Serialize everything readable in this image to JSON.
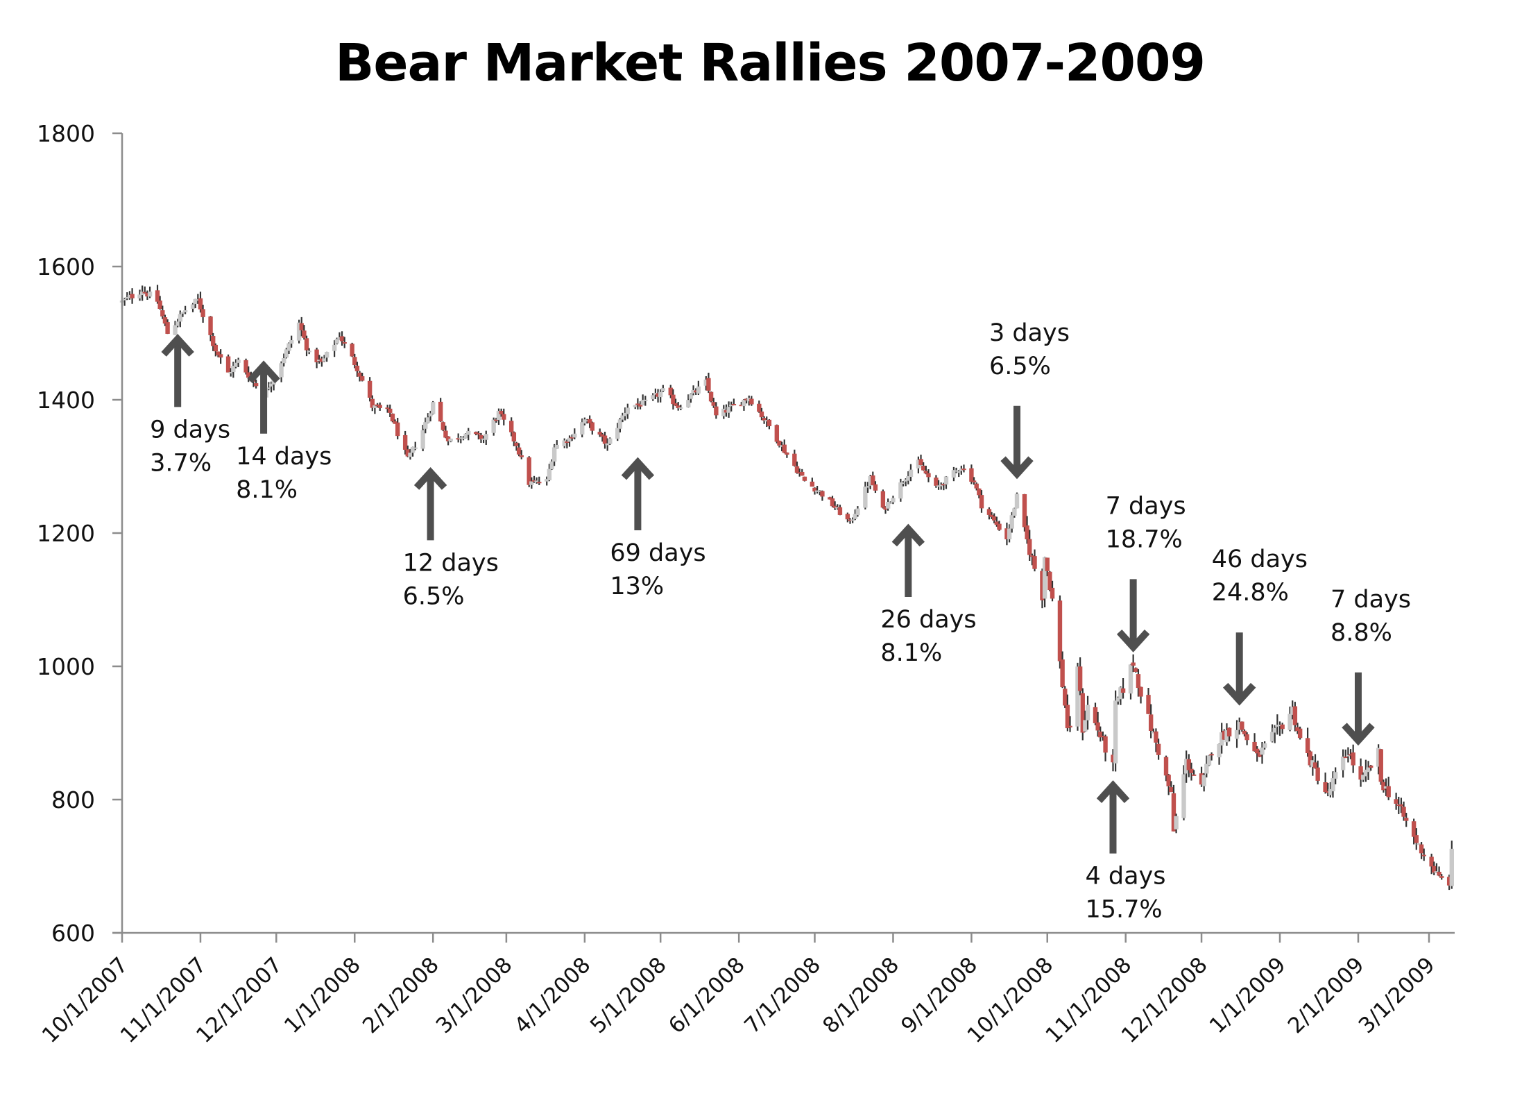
{
  "colors": {
    "down_body": "#c0504d",
    "up_body": "#c9c9c9",
    "wick": "#333333",
    "arrow": "#4f4f4f",
    "axis": "#8c8c8c"
  },
  "chart_data": {
    "type": "candlestick",
    "title": "Bear Market Rallies 2007-2009",
    "xlabel": "",
    "ylabel": "",
    "ylim": [
      600,
      1800
    ],
    "xlim": [
      "2007-10-01",
      "2009-03-11"
    ],
    "grid": false,
    "legend": "none",
    "y_ticks": [
      "1800",
      "1600",
      "1400",
      "1200",
      "1000",
      "800",
      "600"
    ],
    "x_ticks": [
      {
        "date": "2007-10-01",
        "label": "10/1/2007"
      },
      {
        "date": "2007-11-01",
        "label": "11/1/2007"
      },
      {
        "date": "2007-12-01",
        "label": "12/1/2007"
      },
      {
        "date": "2008-01-01",
        "label": "1/1/2008"
      },
      {
        "date": "2008-02-01",
        "label": "2/1/2008"
      },
      {
        "date": "2008-03-01",
        "label": "3/1/2008"
      },
      {
        "date": "2008-04-01",
        "label": "4/1/2008"
      },
      {
        "date": "2008-05-01",
        "label": "5/1/2008"
      },
      {
        "date": "2008-06-01",
        "label": "6/1/2008"
      },
      {
        "date": "2008-07-01",
        "label": "7/1/2008"
      },
      {
        "date": "2008-08-01",
        "label": "8/1/2008"
      },
      {
        "date": "2008-09-01",
        "label": "9/1/2008"
      },
      {
        "date": "2008-10-01",
        "label": "10/1/2008"
      },
      {
        "date": "2008-11-01",
        "label": "11/1/2008"
      },
      {
        "date": "2008-12-01",
        "label": "12/1/2008"
      },
      {
        "date": "2009-01-01",
        "label": "1/1/2009"
      },
      {
        "date": "2009-02-01",
        "label": "2/1/2009"
      },
      {
        "date": "2009-03-01",
        "label": "3/1/2009"
      }
    ],
    "close_anchors": [
      [
        "2007-10-01",
        1547
      ],
      [
        "2007-10-09",
        1565
      ],
      [
        "2007-10-15",
        1548
      ],
      [
        "2007-10-19",
        1500
      ],
      [
        "2007-10-26",
        1535
      ],
      [
        "2007-10-31",
        1549
      ],
      [
        "2007-11-07",
        1475
      ],
      [
        "2007-11-12",
        1440
      ],
      [
        "2007-11-16",
        1458
      ],
      [
        "2007-11-26",
        1407
      ],
      [
        "2007-12-04",
        1465
      ],
      [
        "2007-12-10",
        1515
      ],
      [
        "2007-12-14",
        1468
      ],
      [
        "2007-12-19",
        1455
      ],
      [
        "2007-12-26",
        1497
      ],
      [
        "2008-01-02",
        1448
      ],
      [
        "2008-01-08",
        1390
      ],
      [
        "2008-01-15",
        1380
      ],
      [
        "2008-01-22",
        1310
      ],
      [
        "2008-01-28",
        1355
      ],
      [
        "2008-02-01",
        1395
      ],
      [
        "2008-02-07",
        1338
      ],
      [
        "2008-02-14",
        1350
      ],
      [
        "2008-02-21",
        1342
      ],
      [
        "2008-02-27",
        1380
      ],
      [
        "2008-03-05",
        1333
      ],
      [
        "2008-03-10",
        1275
      ],
      [
        "2008-03-17",
        1278
      ],
      [
        "2008-03-20",
        1330
      ],
      [
        "2008-03-26",
        1342
      ],
      [
        "2008-04-01",
        1370
      ],
      [
        "2008-04-10",
        1332
      ],
      [
        "2008-04-18",
        1390
      ],
      [
        "2008-04-25",
        1395
      ],
      [
        "2008-05-02",
        1413
      ],
      [
        "2008-05-08",
        1390
      ],
      [
        "2008-05-19",
        1426
      ],
      [
        "2008-05-23",
        1375
      ],
      [
        "2008-06-05",
        1404
      ],
      [
        "2008-06-13",
        1360
      ],
      [
        "2008-06-20",
        1318
      ],
      [
        "2008-06-27",
        1278
      ],
      [
        "2008-07-03",
        1262
      ],
      [
        "2008-07-15",
        1215
      ],
      [
        "2008-07-23",
        1282
      ],
      [
        "2008-07-28",
        1234
      ],
      [
        "2008-08-08",
        1296
      ],
      [
        "2008-08-11",
        1305
      ],
      [
        "2008-08-18",
        1267
      ],
      [
        "2008-08-28",
        1300
      ],
      [
        "2008-09-02",
        1277
      ],
      [
        "2008-09-05",
        1242
      ],
      [
        "2008-09-15",
        1193
      ],
      [
        "2008-09-19",
        1255
      ],
      [
        "2008-09-23",
        1188
      ],
      [
        "2008-09-29",
        1106
      ],
      [
        "2008-09-30",
        1166
      ],
      [
        "2008-10-03",
        1100
      ],
      [
        "2008-10-09",
        910
      ],
      [
        "2008-10-10",
        899
      ],
      [
        "2008-10-13",
        1003
      ],
      [
        "2008-10-15",
        907
      ],
      [
        "2008-10-17",
        940
      ],
      [
        "2008-10-22",
        896
      ],
      [
        "2008-10-27",
        848
      ],
      [
        "2008-10-28",
        940
      ],
      [
        "2008-10-31",
        968
      ],
      [
        "2008-11-04",
        1005
      ],
      [
        "2008-11-10",
        920
      ],
      [
        "2008-11-14",
        873
      ],
      [
        "2008-11-19",
        806
      ],
      [
        "2008-11-20",
        752
      ],
      [
        "2008-11-25",
        857
      ],
      [
        "2008-12-01",
        816
      ],
      [
        "2008-12-05",
        876
      ],
      [
        "2008-12-10",
        899
      ],
      [
        "2008-12-16",
        913
      ],
      [
        "2008-12-23",
        863
      ],
      [
        "2008-12-31",
        903
      ],
      [
        "2009-01-06",
        935
      ],
      [
        "2009-01-09",
        890
      ],
      [
        "2009-01-15",
        843
      ],
      [
        "2009-01-20",
        805
      ],
      [
        "2009-01-22",
        827
      ],
      [
        "2009-01-28",
        874
      ],
      [
        "2009-02-02",
        825
      ],
      [
        "2009-02-09",
        869
      ],
      [
        "2009-02-10",
        827
      ],
      [
        "2009-02-17",
        789
      ],
      [
        "2009-02-23",
        743
      ],
      [
        "2009-03-02",
        700
      ],
      [
        "2009-03-05",
        682
      ],
      [
        "2009-03-09",
        676
      ],
      [
        "2009-03-10",
        719
      ]
    ],
    "annotations": [
      {
        "days": "9 days",
        "pct": "3.7%",
        "arrow": "up",
        "date": "2007-10-23",
        "value": 1510
      },
      {
        "days": "14 days",
        "pct": "8.1%",
        "arrow": "up",
        "date": "2007-11-26",
        "value": 1470
      },
      {
        "days": "12 days",
        "pct": "6.5%",
        "arrow": "up",
        "date": "2008-01-31",
        "value": 1310
      },
      {
        "days": "69 days",
        "pct": "13%",
        "arrow": "up",
        "date": "2008-04-22",
        "value": 1325
      },
      {
        "days": "26 days",
        "pct": "8.1%",
        "arrow": "up",
        "date": "2008-08-07",
        "value": 1225
      },
      {
        "days": "3 days",
        "pct": "6.5%",
        "arrow": "down",
        "date": "2008-09-19",
        "value": 1270
      },
      {
        "days": "4 days",
        "pct": "15.7%",
        "arrow": "up",
        "date": "2008-10-27",
        "value": 840
      },
      {
        "days": "7 days",
        "pct": "18.7%",
        "arrow": "down",
        "date": "2008-11-04",
        "value": 1010
      },
      {
        "days": "46 days",
        "pct": "24.8%",
        "arrow": "down",
        "date": "2008-12-16",
        "value": 930
      },
      {
        "days": "7 days",
        "pct": "8.8%",
        "arrow": "down",
        "date": "2009-02-01",
        "value": 870
      }
    ]
  }
}
